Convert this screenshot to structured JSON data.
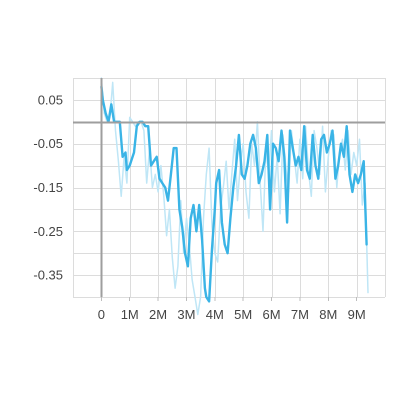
{
  "chart_data": {
    "type": "line",
    "title": "",
    "xlabel": "",
    "ylabel": "",
    "grid": true,
    "xlim": [
      -1000000,
      10000000
    ],
    "ylim": [
      -0.4,
      0.1
    ],
    "x_ticks": [
      {
        "value": 0,
        "label": "0"
      },
      {
        "value": 1000000,
        "label": "1M"
      },
      {
        "value": 2000000,
        "label": "2M"
      },
      {
        "value": 3000000,
        "label": "3M"
      },
      {
        "value": 4000000,
        "label": "4M"
      },
      {
        "value": 5000000,
        "label": "5M"
      },
      {
        "value": 6000000,
        "label": "6M"
      },
      {
        "value": 7000000,
        "label": "7M"
      },
      {
        "value": 8000000,
        "label": "8M"
      },
      {
        "value": 9000000,
        "label": "9M"
      }
    ],
    "y_ticks": [
      {
        "value": 0.05,
        "label": "0.05"
      },
      {
        "value": -0.05,
        "label": "-0.05"
      },
      {
        "value": -0.15,
        "label": "-0.15"
      },
      {
        "value": -0.25,
        "label": "-0.25"
      },
      {
        "value": -0.35,
        "label": "-0.35"
      }
    ],
    "minor_y": [
      0.1,
      0.0,
      -0.1,
      -0.2,
      -0.3,
      -0.4
    ],
    "colors": {
      "smoothed": "#3ab4e6",
      "raw": "#bfe6f6",
      "axis": "#9e9e9e",
      "grid": "#dcdcdc"
    },
    "series": [
      {
        "role": "raw",
        "x": [
          0,
          100000,
          200000,
          300000,
          400000,
          500000,
          600000,
          700000,
          800000,
          900000,
          1000000,
          1100000,
          1200000,
          1300000,
          1400000,
          1500000,
          1600000,
          1700000,
          1800000,
          1900000,
          2000000,
          2100000,
          2200000,
          2300000,
          2400000,
          2500000,
          2600000,
          2700000,
          2800000,
          2900000,
          3000000,
          3100000,
          3200000,
          3300000,
          3400000,
          3500000,
          3600000,
          3700000,
          3800000,
          3900000,
          4000000,
          4100000,
          4200000,
          4300000,
          4400000,
          4500000,
          4600000,
          4700000,
          4800000,
          4900000,
          5000000,
          5100000,
          5200000,
          5300000,
          5400000,
          5500000,
          5600000,
          5700000,
          5800000,
          5900000,
          6000000,
          6100000,
          6200000,
          6300000,
          6400000,
          6500000,
          6600000,
          6700000,
          6800000,
          6900000,
          7000000,
          7100000,
          7200000,
          7300000,
          7400000,
          7500000,
          7600000,
          7700000,
          7800000,
          7900000,
          8000000,
          8100000,
          8200000,
          8300000,
          8400000,
          8500000,
          8600000,
          8700000,
          8800000,
          8900000,
          9000000,
          9100000,
          9200000,
          9300000,
          9400000
        ],
        "y": [
          0.1,
          0.02,
          0.0,
          0.01,
          0.09,
          -0.02,
          -0.09,
          -0.17,
          -0.08,
          -0.14,
          0.01,
          0.0,
          -0.01,
          0.0,
          0.0,
          -0.02,
          -0.14,
          -0.06,
          -0.15,
          -0.12,
          -0.16,
          -0.1,
          -0.17,
          -0.26,
          -0.2,
          -0.31,
          -0.38,
          -0.33,
          -0.18,
          -0.3,
          -0.22,
          -0.28,
          -0.36,
          -0.4,
          -0.44,
          -0.4,
          -0.22,
          -0.12,
          -0.06,
          -0.24,
          -0.3,
          -0.32,
          -0.2,
          -0.15,
          -0.09,
          -0.2,
          -0.12,
          -0.04,
          -0.18,
          -0.1,
          -0.05,
          -0.16,
          -0.22,
          -0.05,
          -0.1,
          0.0,
          -0.14,
          -0.25,
          -0.06,
          -0.12,
          -0.02,
          -0.16,
          -0.08,
          -0.21,
          -0.03,
          -0.1,
          -0.16,
          -0.02,
          -0.08,
          -0.14,
          -0.04,
          -0.13,
          -0.01,
          -0.11,
          -0.17,
          -0.02,
          -0.06,
          -0.12,
          -0.01,
          -0.16,
          -0.08,
          -0.02,
          -0.03,
          -0.15,
          -0.07,
          -0.04,
          -0.11,
          -0.02,
          -0.12,
          -0.07,
          -0.1,
          -0.04,
          -0.19,
          -0.14,
          -0.39
        ]
      },
      {
        "role": "smoothed",
        "x": [
          0,
          50000,
          150000,
          250000,
          350000,
          450000,
          550000,
          650000,
          750000,
          850000,
          900000,
          1000000,
          1050000,
          1150000,
          1250000,
          1350000,
          1450000,
          1550000,
          1650000,
          1750000,
          1850000,
          1950000,
          2050000,
          2150000,
          2250000,
          2350000,
          2450000,
          2550000,
          2650000,
          2750000,
          2850000,
          2950000,
          3050000,
          3150000,
          3250000,
          3350000,
          3450000,
          3550000,
          3650000,
          3700000,
          3800000,
          3900000,
          4000000,
          4050000,
          4150000,
          4250000,
          4350000,
          4450000,
          4550000,
          4650000,
          4750000,
          4850000,
          4950000,
          5050000,
          5150000,
          5250000,
          5350000,
          5450000,
          5550000,
          5650000,
          5750000,
          5850000,
          5950000,
          6050000,
          6150000,
          6250000,
          6350000,
          6450000,
          6550000,
          6650000,
          6750000,
          6850000,
          6950000,
          7050000,
          7150000,
          7250000,
          7350000,
          7450000,
          7550000,
          7650000,
          7750000,
          7850000,
          7950000,
          8050000,
          8150000,
          8250000,
          8350000,
          8450000,
          8550000,
          8650000,
          8750000,
          8850000,
          8950000,
          9050000,
          9150000,
          9250000,
          9350000
        ],
        "y": [
          0.08,
          0.05,
          0.02,
          0.0,
          0.04,
          0.0,
          0.0,
          0.0,
          -0.08,
          -0.07,
          -0.11,
          -0.1,
          -0.09,
          -0.07,
          -0.01,
          0.0,
          0.0,
          -0.01,
          -0.01,
          -0.1,
          -0.09,
          -0.08,
          -0.13,
          -0.14,
          -0.15,
          -0.18,
          -0.12,
          -0.06,
          -0.06,
          -0.2,
          -0.24,
          -0.3,
          -0.33,
          -0.22,
          -0.19,
          -0.25,
          -0.19,
          -0.27,
          -0.38,
          -0.4,
          -0.41,
          -0.29,
          -0.2,
          -0.14,
          -0.11,
          -0.23,
          -0.28,
          -0.3,
          -0.22,
          -0.15,
          -0.1,
          -0.03,
          -0.12,
          -0.13,
          -0.1,
          -0.05,
          -0.03,
          -0.06,
          -0.14,
          -0.12,
          -0.09,
          -0.03,
          -0.2,
          -0.05,
          -0.06,
          -0.09,
          -0.02,
          -0.08,
          -0.23,
          -0.02,
          -0.06,
          -0.1,
          -0.08,
          -0.11,
          -0.01,
          -0.11,
          -0.13,
          -0.03,
          -0.1,
          -0.13,
          -0.04,
          -0.03,
          -0.07,
          -0.05,
          -0.02,
          -0.13,
          -0.1,
          -0.05,
          -0.08,
          -0.01,
          -0.12,
          -0.16,
          -0.12,
          -0.14,
          -0.12,
          -0.09,
          -0.28
        ]
      }
    ]
  }
}
